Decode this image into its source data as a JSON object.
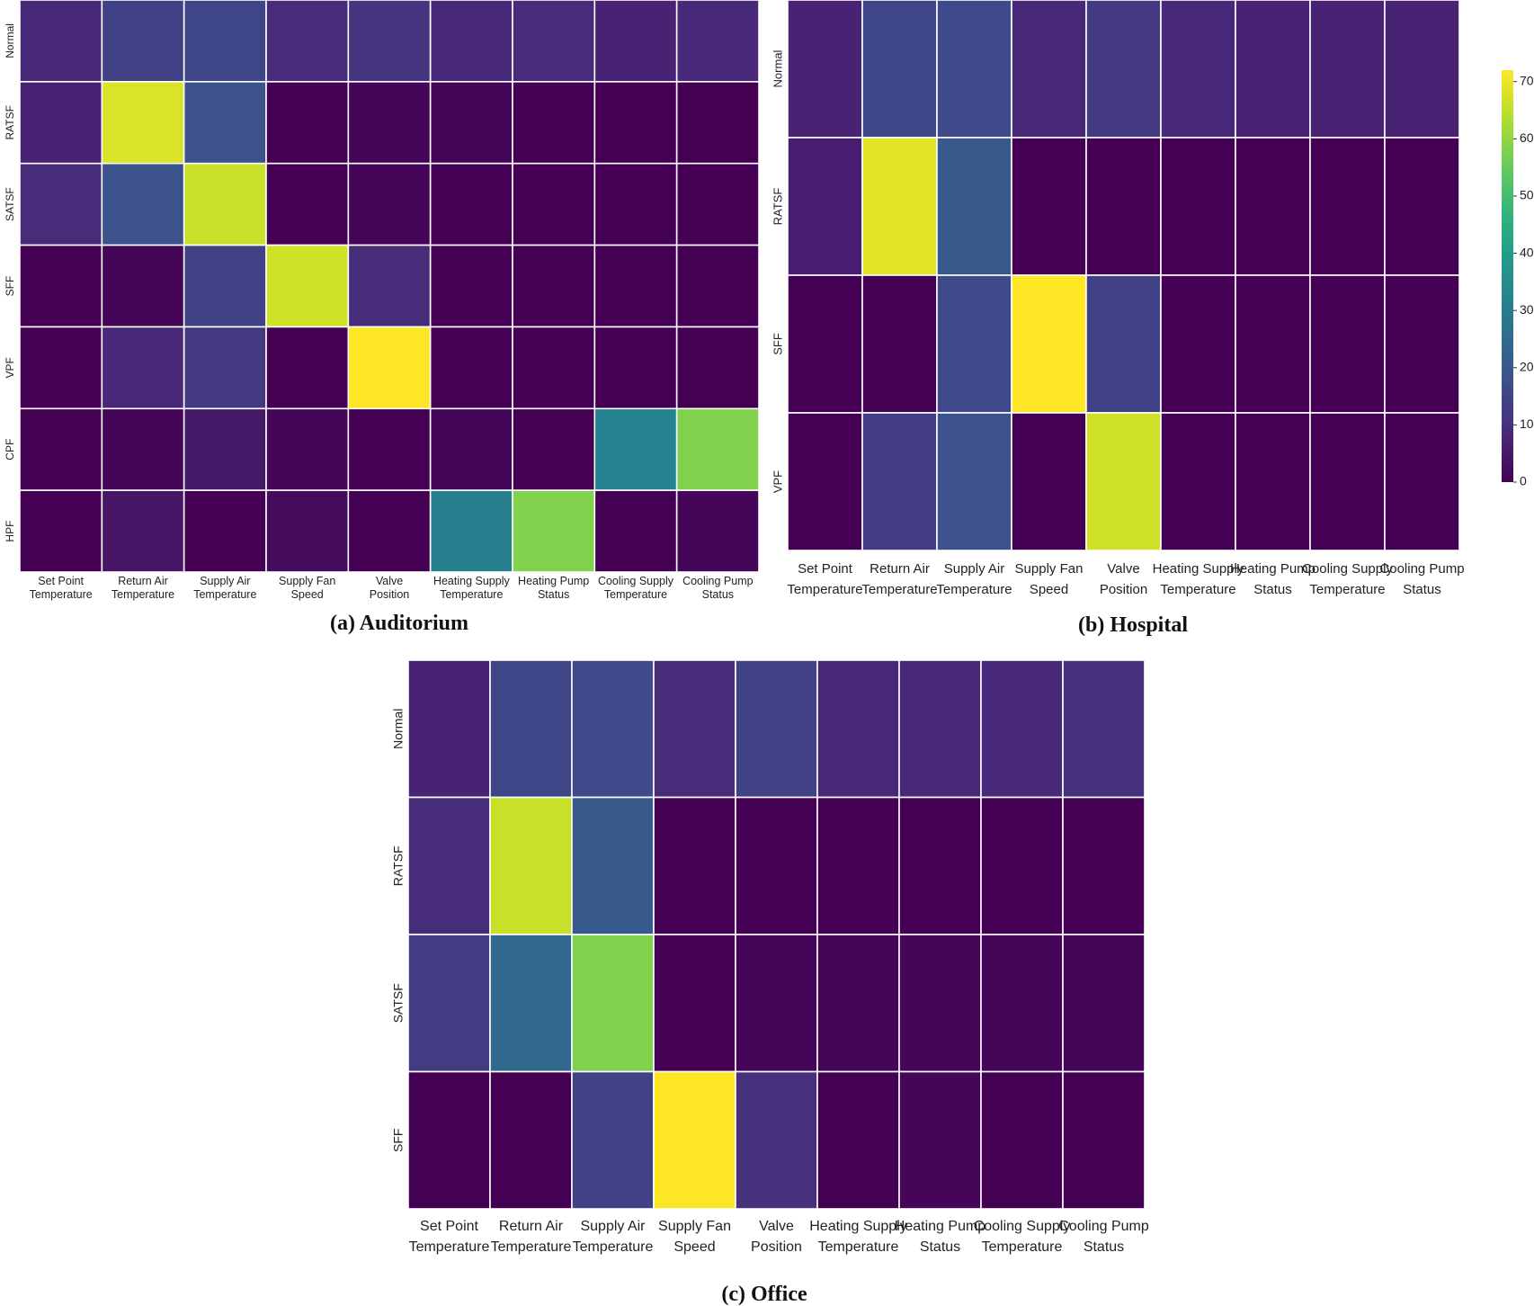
{
  "colorbar": {
    "cmap": "viridis",
    "range": [
      0,
      72
    ],
    "ticks": [
      0,
      10,
      20,
      30,
      40,
      50,
      60,
      70
    ],
    "tick_labels": [
      "0",
      "10",
      "20",
      "30",
      "40",
      "50",
      "60",
      "70"
    ]
  },
  "chart_data": [
    {
      "type": "heatmap",
      "caption": "(a) Auditorium",
      "title": "",
      "x_labels": [
        [
          "Set Point",
          "Temperature"
        ],
        [
          "Return Air",
          "Temperature"
        ],
        [
          "Supply Air",
          "Temperature"
        ],
        [
          "Supply Fan",
          "Speed"
        ],
        [
          "Valve",
          "Position"
        ],
        [
          "Heating Supply",
          "Temperature"
        ],
        [
          "Heating Pump",
          "Status"
        ],
        [
          "Cooling Supply",
          "Temperature"
        ],
        [
          "Cooling Pump",
          "Status"
        ]
      ],
      "y_labels": [
        "Normal",
        "RATSF",
        "SATSF",
        "SFF",
        "VPF",
        "CPF",
        "HPF"
      ],
      "values": [
        [
          8,
          14,
          15,
          9,
          11,
          8,
          9,
          7,
          8
        ],
        [
          7,
          68,
          18,
          0,
          1,
          1,
          0,
          0,
          0
        ],
        [
          9,
          18,
          66,
          0,
          1,
          0,
          0,
          0,
          0
        ],
        [
          0,
          1,
          14,
          67,
          9,
          0,
          0,
          0,
          0
        ],
        [
          0,
          8,
          12,
          0,
          72,
          0,
          0,
          0,
          0
        ],
        [
          0,
          1,
          5,
          1,
          0,
          1,
          0,
          32,
          58
        ],
        [
          0,
          4,
          0,
          2,
          0,
          31,
          58,
          0,
          1
        ]
      ]
    },
    {
      "type": "heatmap",
      "caption": "(b) Hospital",
      "title": "",
      "x_labels": [
        [
          "Set Point",
          "Temperature"
        ],
        [
          "Return Air",
          "Temperature"
        ],
        [
          "Supply Air",
          "Temperature"
        ],
        [
          "Supply Fan",
          "Speed"
        ],
        [
          "Valve",
          "Position"
        ],
        [
          "Heating Supply",
          "Temperature"
        ],
        [
          "Heating Pump",
          "Status"
        ],
        [
          "Cooling Supply",
          "Temperature"
        ],
        [
          "Cooling Pump",
          "Status"
        ]
      ],
      "y_labels": [
        "Normal",
        "RATSF",
        "SFF",
        "VPF"
      ],
      "values": [
        [
          7,
          15,
          16,
          8,
          12,
          8,
          7,
          7,
          7
        ],
        [
          6,
          69,
          20,
          0,
          0,
          0,
          0,
          0,
          0
        ],
        [
          0,
          0,
          16,
          72,
          14,
          0,
          0,
          0,
          0
        ],
        [
          0,
          13,
          18,
          0,
          67,
          0,
          0,
          0,
          0
        ]
      ]
    },
    {
      "type": "heatmap",
      "caption": "(c) Office",
      "title": "",
      "x_labels": [
        [
          "Set Point",
          "Temperature"
        ],
        [
          "Return Air",
          "Temperature"
        ],
        [
          "Supply Air",
          "Temperature"
        ],
        [
          "Supply Fan",
          "Speed"
        ],
        [
          "Valve",
          "Position"
        ],
        [
          "Heating Supply",
          "Temperature"
        ],
        [
          "Heating Pump",
          "Status"
        ],
        [
          "Cooling Supply",
          "Temperature"
        ],
        [
          "Cooling Pump",
          "Status"
        ]
      ],
      "y_labels": [
        "Normal",
        "RATSF",
        "SATSF",
        "SFF"
      ],
      "values": [
        [
          7,
          15,
          16,
          9,
          14,
          8,
          8,
          8,
          10
        ],
        [
          9,
          66,
          20,
          0,
          0,
          0,
          0,
          0,
          0
        ],
        [
          13,
          24,
          58,
          0,
          1,
          1,
          1,
          1,
          1
        ],
        [
          0,
          0,
          14,
          72,
          10,
          0,
          1,
          0,
          0
        ]
      ]
    }
  ]
}
